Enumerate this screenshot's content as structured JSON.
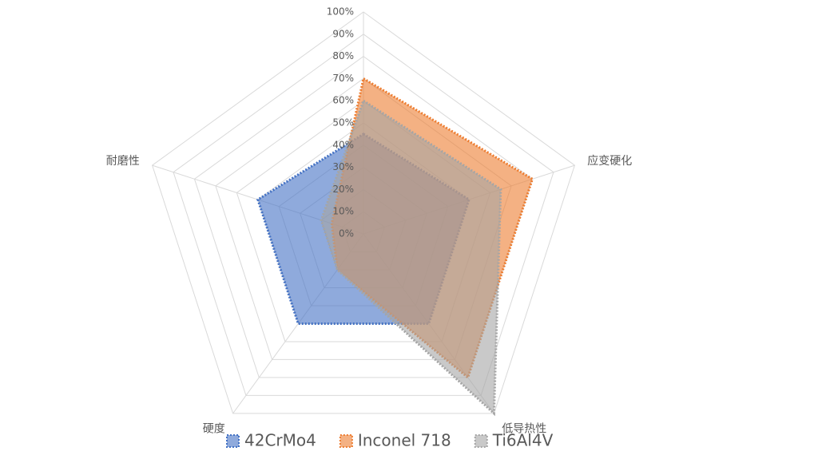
{
  "chart_data": {
    "type": "radar",
    "categories": [
      null,
      "应变硬化",
      "低导热性",
      "硬度",
      "耐磨性"
    ],
    "series": [
      {
        "name": "42CrMo4",
        "color": "#4472c4",
        "values": [
          45,
          50,
          50,
          50,
          50
        ]
      },
      {
        "name": "Inconel 718",
        "color": "#ed7d31",
        "values": [
          70,
          80,
          80,
          20,
          15
        ]
      },
      {
        "name": "Ti6Al4V",
        "color": "#a5a5a5",
        "values": [
          60,
          65,
          100,
          20,
          20
        ]
      }
    ],
    "ylim": [
      0,
      100
    ],
    "yticks": [
      {
        "value": 0,
        "label": "0%"
      },
      {
        "value": 10,
        "label": "10%"
      },
      {
        "value": 20,
        "label": "20%"
      },
      {
        "value": 30,
        "label": "30%"
      },
      {
        "value": 40,
        "label": "40%"
      },
      {
        "value": 50,
        "label": "50%"
      },
      {
        "value": 60,
        "label": "60%"
      },
      {
        "value": 70,
        "label": "70%"
      },
      {
        "value": 80,
        "label": "80%"
      },
      {
        "value": 90,
        "label": "90%"
      },
      {
        "value": 100,
        "label": "100%"
      }
    ],
    "grid": true,
    "legend": "bottom"
  }
}
